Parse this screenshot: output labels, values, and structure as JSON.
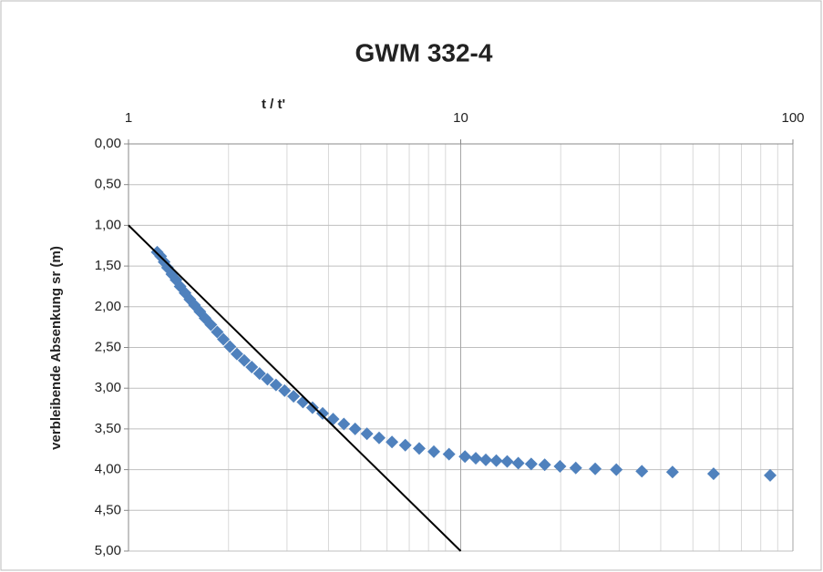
{
  "chart_data": {
    "type": "scatter",
    "title": "GWM 332-4",
    "x_label": "t / t'",
    "y_label": "verbleibende Absenkung sr (m)",
    "x_log": true,
    "y_reversed": true,
    "x_axis_position": "top",
    "grid": true,
    "minor_grid": true,
    "xlim": [
      1,
      100
    ],
    "xticks": [
      1,
      10,
      100
    ],
    "ylim": [
      0,
      5
    ],
    "yticks": [
      {
        "value": 0,
        "label": "0,00"
      },
      {
        "value": 0.5,
        "label": "0,50"
      },
      {
        "value": 1,
        "label": "1,00"
      },
      {
        "value": 1.5,
        "label": "1,50"
      },
      {
        "value": 2,
        "label": "2,00"
      },
      {
        "value": 2.5,
        "label": "2,50"
      },
      {
        "value": 3,
        "label": "3,00"
      },
      {
        "value": 3.5,
        "label": "3,50"
      },
      {
        "value": 4,
        "label": "4,00"
      },
      {
        "value": 4.5,
        "label": "4,50"
      },
      {
        "value": 5,
        "label": "5,00"
      }
    ],
    "series": [
      {
        "type": "scatter",
        "color": "#4f81bd",
        "x": [
          1.22,
          1.25,
          1.28,
          1.31,
          1.35,
          1.39,
          1.43,
          1.48,
          1.53,
          1.58,
          1.64,
          1.7,
          1.77,
          1.85,
          1.93,
          2.02,
          2.12,
          2.23,
          2.35,
          2.48,
          2.62,
          2.78,
          2.95,
          3.14,
          3.35,
          3.58,
          3.84,
          4.13,
          4.45,
          4.81,
          5.22,
          5.68,
          6.21,
          6.81,
          7.5,
          8.3,
          9.22,
          10.3,
          11.1,
          11.9,
          12.8,
          13.8,
          14.9,
          16.3,
          17.9,
          19.9,
          22.2,
          25.4,
          29.4,
          35.1,
          43.4,
          57.7,
          85.4
        ],
        "values": [
          1.33,
          1.38,
          1.45,
          1.52,
          1.6,
          1.67,
          1.75,
          1.83,
          1.91,
          1.98,
          2.06,
          2.14,
          2.22,
          2.31,
          2.4,
          2.49,
          2.58,
          2.66,
          2.74,
          2.82,
          2.89,
          2.96,
          3.03,
          3.1,
          3.17,
          3.24,
          3.31,
          3.38,
          3.44,
          3.5,
          3.56,
          3.61,
          3.66,
          3.7,
          3.74,
          3.78,
          3.81,
          3.84,
          3.86,
          3.88,
          3.89,
          3.9,
          3.92,
          3.93,
          3.94,
          3.96,
          3.98,
          3.99,
          4.0,
          4.02,
          4.03,
          4.05,
          4.07
        ]
      },
      {
        "type": "line",
        "color": "#000000",
        "x": [
          1,
          10
        ],
        "values": [
          1,
          5
        ]
      }
    ]
  }
}
